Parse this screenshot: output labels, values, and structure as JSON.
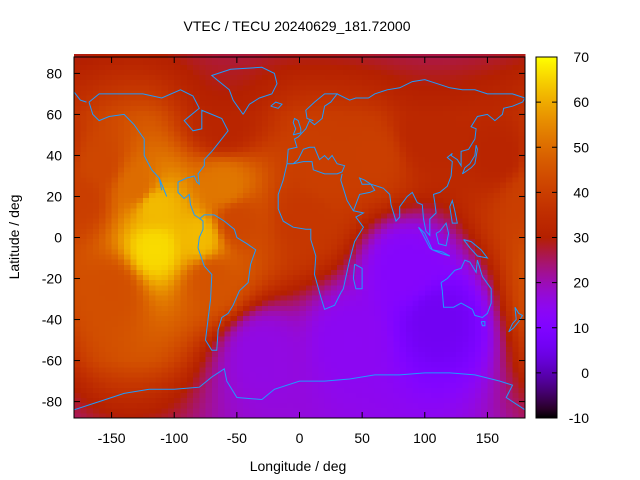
{
  "chart_data": {
    "type": "heatmap",
    "title": "VTEC / TECU 20240629_181.72000",
    "xlabel": "Longitude / deg",
    "ylabel": "Latitude / deg",
    "xlim": [
      -180,
      180
    ],
    "ylim": [
      -88,
      88
    ],
    "x_ticks": [
      -150,
      -100,
      -50,
      0,
      50,
      100,
      150
    ],
    "y_ticks": [
      -80,
      -60,
      -40,
      -20,
      0,
      20,
      40,
      60,
      80
    ],
    "colorbar": {
      "range": [
        -10,
        70
      ],
      "ticks": [
        -10,
        0,
        10,
        20,
        30,
        40,
        50,
        60,
        70
      ],
      "palette": "gnuplot (black-purple-red-orange-yellow)"
    },
    "grid_lon_step": 5,
    "grid_lat_step": 2.5,
    "features": [
      {
        "lon": -115,
        "lat": -5,
        "value": 66,
        "desc": "equatorial maximum"
      },
      {
        "lon": -115,
        "lat": 15,
        "value": 62
      },
      {
        "lon": -80,
        "lat": 0,
        "value": 62
      },
      {
        "lon": -130,
        "lat": 25,
        "value": 50
      },
      {
        "lon": -60,
        "lat": 25,
        "value": 52
      },
      {
        "lon": -160,
        "lat": 35,
        "value": 42
      },
      {
        "lon": -175,
        "lat": 20,
        "value": 40
      },
      {
        "lon": -150,
        "lat": -25,
        "value": 44
      },
      {
        "lon": -70,
        "lat": -20,
        "value": 45
      },
      {
        "lon": -50,
        "lat": 8,
        "value": 42
      },
      {
        "lon": 5,
        "lat": 10,
        "value": 38
      },
      {
        "lon": 20,
        "lat": 30,
        "value": 40
      },
      {
        "lon": 60,
        "lat": 40,
        "value": 40
      },
      {
        "lon": 100,
        "lat": 50,
        "value": 33
      },
      {
        "lon": 160,
        "lat": 40,
        "value": 32
      },
      {
        "lon": -60,
        "lat": 55,
        "value": 32
      },
      {
        "lon": 110,
        "lat": -40,
        "value": 6
      },
      {
        "lon": 85,
        "lat": -15,
        "value": 12
      },
      {
        "lon": 40,
        "lat": -50,
        "value": 14
      },
      {
        "lon": -30,
        "lat": -55,
        "value": 16
      }
    ]
  },
  "colors": {
    "coastline": "#1e9bff",
    "colorbar_order": [
      "#000000",
      "#4b0096",
      "#8a00ff",
      "#c21aa0",
      "#e33a00",
      "#ff8a00",
      "#ffff00"
    ]
  }
}
